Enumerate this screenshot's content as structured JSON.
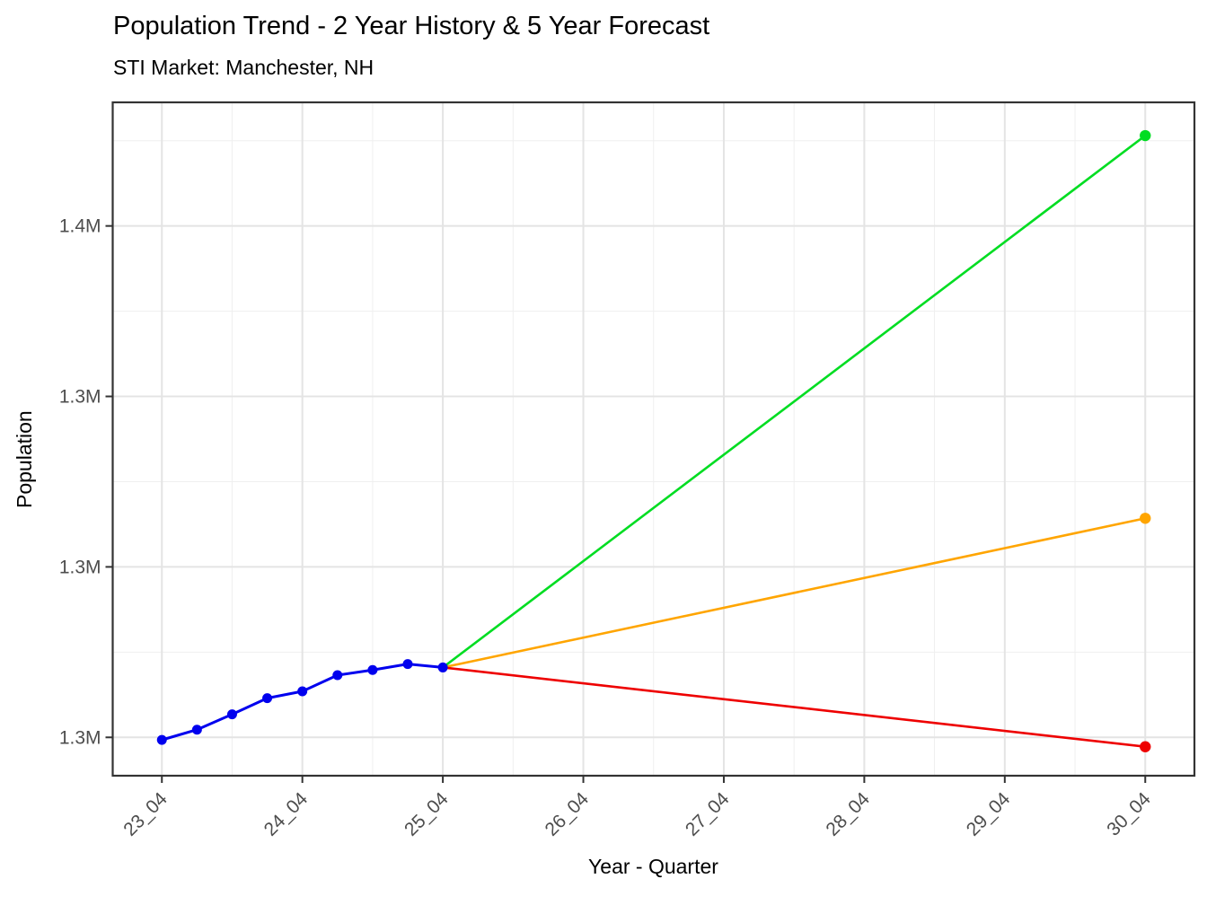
{
  "chart_data": {
    "type": "line",
    "title": "Population Trend - 2 Year History & 5 Year Forecast",
    "subtitle": "STI Market: Manchester, NH",
    "xlabel": "Year - Quarter",
    "ylabel": "Population",
    "legend": "none",
    "grid": true,
    "x_axis": {
      "tick_labels": [
        "23_04",
        "24_04",
        "25_04",
        "26_04",
        "27_04",
        "28_04",
        "29_04",
        "30_04"
      ],
      "tick_quarters": [
        0,
        4,
        8,
        12,
        16,
        20,
        24,
        28
      ],
      "minor_quarters": [
        2,
        6,
        10,
        14,
        18,
        22,
        26
      ],
      "xlim_quarters": [
        -1.4,
        29.4
      ],
      "label_angle_deg": 45
    },
    "y_axis": {
      "unit": "millions",
      "tick_values_m": [
        1.3,
        1.32,
        1.34,
        1.36
      ],
      "tick_labels": [
        "1.3M",
        "1.3M",
        "1.3M",
        "1.4M"
      ],
      "minor_values_m": [
        1.31,
        1.33,
        1.35,
        1.37
      ],
      "ylim_m": [
        1.2955,
        1.3745
      ]
    },
    "series": [
      {
        "name": "history",
        "role": "history",
        "color": "#0000ee",
        "quarters": [
          0,
          1,
          2,
          3,
          4,
          5,
          6,
          7,
          8
        ],
        "x_labels": [
          "23_04",
          "24_01",
          "24_02",
          "24_03",
          "24_04",
          "25_01",
          "25_02",
          "25_03",
          "25_04"
        ],
        "values_m": [
          1.2997,
          1.3009,
          1.3027,
          1.3046,
          1.3054,
          1.3073,
          1.3079,
          1.3086,
          1.3082
        ],
        "show_all_points": true
      },
      {
        "name": "forecast-high",
        "role": "forecast",
        "color": "#00dd22",
        "quarters": [
          8,
          28
        ],
        "x_labels": [
          "25_04",
          "30_04"
        ],
        "values_m": [
          1.3082,
          1.3706
        ],
        "show_all_points": false
      },
      {
        "name": "forecast-mid",
        "role": "forecast",
        "color": "#ffa500",
        "quarters": [
          8,
          28
        ],
        "x_labels": [
          "25_04",
          "30_04"
        ],
        "values_m": [
          1.3082,
          1.3257
        ],
        "show_all_points": false
      },
      {
        "name": "forecast-low",
        "role": "forecast",
        "color": "#ee0000",
        "quarters": [
          8,
          28
        ],
        "x_labels": [
          "25_04",
          "30_04"
        ],
        "values_m": [
          1.3082,
          1.2989
        ],
        "show_all_points": false
      }
    ],
    "style": {
      "grid_major_color": "#e4e4e4",
      "grid_minor_color": "#efefef",
      "panel_border_color": "#333333",
      "tick_mark_color": "#333333",
      "tick_text_color": "#4d4d4d",
      "background": "#ffffff"
    }
  }
}
